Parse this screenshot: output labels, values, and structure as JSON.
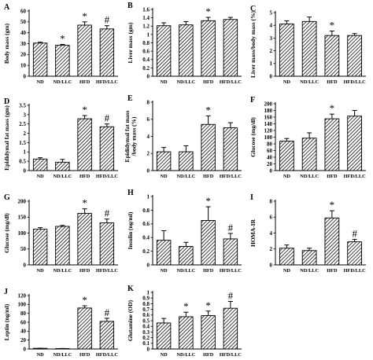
{
  "chart_data": [
    {
      "panel": "A",
      "type": "bar",
      "categories": [
        "ND",
        "ND/LLC",
        "HFD",
        "HFD/LLC"
      ],
      "values": [
        30.5,
        28.5,
        47,
        43.5
      ],
      "errors": [
        0.8,
        0.8,
        3,
        3
      ],
      "ylabel_lines": [
        "Body mass (gm)"
      ],
      "ylim": [
        0,
        60
      ],
      "yticks": [
        0,
        10,
        20,
        30,
        40,
        50,
        60
      ],
      "annotations": [
        "",
        "*",
        "*",
        "#"
      ]
    },
    {
      "panel": "B",
      "type": "bar",
      "categories": [
        "ND",
        "ND/LLC",
        "HFD",
        "HFD/LLC"
      ],
      "values": [
        1.21,
        1.23,
        1.33,
        1.36
      ],
      "errors": [
        0.07,
        0.08,
        0.08,
        0.05
      ],
      "ylabel_lines": [
        "Liver mass (gm)"
      ],
      "ylim": [
        0,
        1.6
      ],
      "yticks": [
        0,
        0.2,
        0.4,
        0.6,
        0.8,
        1,
        1.2,
        1.4,
        1.6
      ],
      "annotations": [
        "",
        "",
        "*",
        ""
      ]
    },
    {
      "panel": "C",
      "type": "bar",
      "categories": [
        "ND",
        "ND/LLC",
        "HFD",
        "HFD/LLC"
      ],
      "values": [
        4.1,
        4.3,
        3.2,
        3.2
      ],
      "errors": [
        0.25,
        0.35,
        0.35,
        0.15
      ],
      "ylabel_lines": [
        "Liver mass/body mass (%)"
      ],
      "ylim": [
        0,
        5
      ],
      "yticks": [
        0,
        1,
        2,
        3,
        4,
        5
      ],
      "annotations": [
        "",
        "",
        "*",
        ""
      ]
    },
    {
      "panel": "D",
      "type": "bar",
      "categories": [
        "ND",
        "ND/LLC",
        "HFD",
        "HFD/LLC"
      ],
      "values": [
        0.62,
        0.45,
        2.78,
        2.35
      ],
      "errors": [
        0.07,
        0.15,
        0.17,
        0.15
      ],
      "ylabel_lines": [
        "Epididymal fat mass (gm)"
      ],
      "ylim": [
        0,
        3.5
      ],
      "yticks": [
        0,
        0.5,
        1,
        1.5,
        2,
        2.5,
        3,
        3.5
      ],
      "annotations": [
        "",
        "",
        "*",
        "#"
      ]
    },
    {
      "panel": "E",
      "type": "bar",
      "categories": [
        "ND",
        "ND/LLC",
        "HFD",
        "HFD/LLC"
      ],
      "values": [
        2.2,
        2.2,
        5.4,
        5.0
      ],
      "errors": [
        0.5,
        0.7,
        1.0,
        0.6
      ],
      "ylabel_lines": [
        "Epididymal fat mass",
        "/body mass (%)"
      ],
      "ylim": [
        0,
        8
      ],
      "yticks": [
        0,
        2,
        4,
        6,
        8
      ],
      "annotations": [
        "",
        "",
        "*",
        ""
      ]
    },
    {
      "panel": "F",
      "type": "bar",
      "categories": [
        "ND",
        "ND/LLC",
        "HFD",
        "HFD/LLC"
      ],
      "values": [
        88,
        97,
        155,
        163
      ],
      "errors": [
        8,
        16,
        14,
        17
      ],
      "ylabel_lines": [
        "Glucose (mg/dl)"
      ],
      "ylim": [
        0,
        200
      ],
      "yticks": [
        0,
        20,
        40,
        60,
        80,
        100,
        120,
        140,
        160,
        180,
        200
      ],
      "annotations": [
        "",
        "",
        "*",
        ""
      ]
    },
    {
      "panel": "G",
      "type": "bar",
      "categories": [
        "ND",
        "ND/LLC",
        "HFD",
        "HFD/LLC"
      ],
      "values": [
        112,
        121,
        162,
        132
      ],
      "errors": [
        5,
        3,
        14,
        12
      ],
      "ylabel_lines": [
        "Glucose (mg/dl)"
      ],
      "ylim": [
        0,
        200
      ],
      "yticks": [
        0,
        50,
        100,
        150,
        200
      ],
      "annotations": [
        "",
        "",
        "*",
        "#"
      ]
    },
    {
      "panel": "H",
      "type": "bar",
      "categories": [
        "ND",
        "ND/LLC",
        "HFD",
        "HFD/LLC"
      ],
      "values": [
        0.36,
        0.27,
        0.65,
        0.38
      ],
      "errors": [
        0.14,
        0.06,
        0.2,
        0.08
      ],
      "ylabel_lines": [
        "Insulin (ng/ml)"
      ],
      "ylim": [
        0,
        1
      ],
      "yticks": [
        0,
        0.2,
        0.4,
        0.6,
        0.8,
        1
      ],
      "annotations": [
        "",
        "",
        "*",
        "#"
      ]
    },
    {
      "panel": "I",
      "type": "bar",
      "categories": [
        "ND",
        "ND/LLC",
        "HFD",
        "HFD/LLC"
      ],
      "values": [
        2.1,
        1.8,
        5.9,
        2.9
      ],
      "errors": [
        0.4,
        0.3,
        0.9,
        0.3
      ],
      "ylabel_lines": [
        "HOMA-IR"
      ],
      "ylim": [
        0,
        8
      ],
      "yticks": [
        0,
        2,
        4,
        6,
        8
      ],
      "annotations": [
        "",
        "",
        "*",
        "#"
      ]
    },
    {
      "panel": "J",
      "type": "bar",
      "categories": [
        "ND",
        "ND/LLC",
        "HFD",
        "HFD/LLC"
      ],
      "values": [
        1.5,
        1,
        92,
        62
      ],
      "errors": [
        0.3,
        0.2,
        5,
        7
      ],
      "ylabel_lines": [
        "Leptin (ng/ml)"
      ],
      "ylim": [
        0,
        120
      ],
      "yticks": [
        0,
        20,
        40,
        60,
        80,
        100,
        120
      ],
      "annotations": [
        "",
        "",
        "*",
        "#"
      ]
    },
    {
      "panel": "K",
      "type": "bar",
      "categories": [
        "ND",
        "ND/LLC",
        "HFD",
        "HFD/LLC"
      ],
      "values": [
        0.46,
        0.57,
        0.59,
        0.72
      ],
      "errors": [
        0.08,
        0.08,
        0.08,
        0.12
      ],
      "ylabel_lines": [
        "Glutamine (OD)"
      ],
      "ylim": [
        0,
        1
      ],
      "yticks": [
        0,
        0.1,
        0.2,
        0.3,
        0.4,
        0.5,
        0.6,
        0.7,
        0.8,
        0.9,
        1
      ],
      "annotations": [
        "",
        "*",
        "*",
        "#"
      ]
    }
  ]
}
